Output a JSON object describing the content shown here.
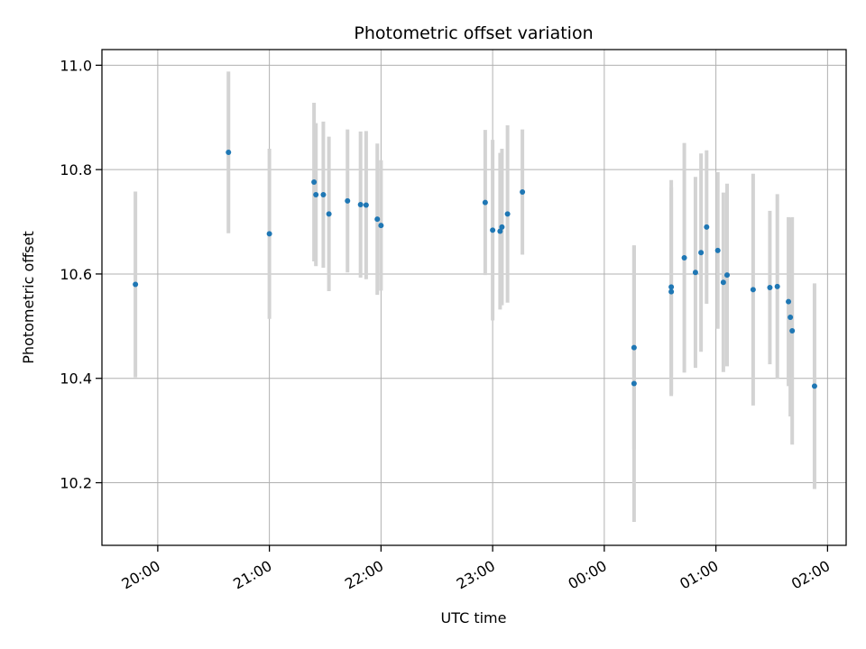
{
  "chart_data": {
    "type": "scatter",
    "title": "Photometric offset variation",
    "xlabel": "UTC time",
    "ylabel": "Photometric offset",
    "grid": true,
    "x_ticks": [
      "20:00",
      "21:00",
      "22:00",
      "23:00",
      "00:00",
      "01:00",
      "02:00"
    ],
    "y_ticks": [
      "10.2",
      "10.4",
      "10.6",
      "10.8",
      "11.0"
    ],
    "xlim": [
      "19:30",
      "02:10"
    ],
    "ylim": [
      10.08,
      11.03
    ],
    "colors": {
      "points": "#1f77b4",
      "errorbars": "#d3d3d3",
      "grid": "#b0b0b0"
    },
    "series": [
      {
        "points": [
          {
            "t": "19:48",
            "y": 10.58,
            "err": 0.178
          },
          {
            "t": "20:38",
            "y": 10.833,
            "err": 0.155
          },
          {
            "t": "21:00",
            "y": 10.677,
            "err": 0.163
          },
          {
            "t": "21:24",
            "y": 10.776,
            "err": 0.152
          },
          {
            "t": "21:25",
            "y": 10.752,
            "err": 0.137
          },
          {
            "t": "21:29",
            "y": 10.752,
            "err": 0.14
          },
          {
            "t": "21:32",
            "y": 10.715,
            "err": 0.148
          },
          {
            "t": "21:42",
            "y": 10.74,
            "err": 0.137
          },
          {
            "t": "21:49",
            "y": 10.733,
            "err": 0.14
          },
          {
            "t": "21:52",
            "y": 10.732,
            "err": 0.142
          },
          {
            "t": "21:58",
            "y": 10.705,
            "err": 0.145
          },
          {
            "t": "22:00",
            "y": 10.693,
            "err": 0.125
          },
          {
            "t": "22:56",
            "y": 10.737,
            "err": 0.139
          },
          {
            "t": "23:00",
            "y": 10.684,
            "err": 0.173
          },
          {
            "t": "23:04",
            "y": 10.682,
            "err": 0.15
          },
          {
            "t": "23:05",
            "y": 10.69,
            "err": 0.15
          },
          {
            "t": "23:08",
            "y": 10.715,
            "err": 0.17
          },
          {
            "t": "23:16",
            "y": 10.757,
            "err": 0.12
          },
          {
            "t": "00:16",
            "y": 10.459,
            "err": 0.195
          },
          {
            "t": "00:16",
            "y": 10.39,
            "err": 0.265
          },
          {
            "t": "00:36",
            "y": 10.566,
            "err": 0.2
          },
          {
            "t": "00:36",
            "y": 10.575,
            "err": 0.205
          },
          {
            "t": "00:43",
            "y": 10.631,
            "err": 0.22
          },
          {
            "t": "00:49",
            "y": 10.603,
            "err": 0.183
          },
          {
            "t": "00:52",
            "y": 10.641,
            "err": 0.19
          },
          {
            "t": "00:55",
            "y": 10.69,
            "err": 0.147
          },
          {
            "t": "01:01",
            "y": 10.645,
            "err": 0.15
          },
          {
            "t": "01:04",
            "y": 10.584,
            "err": 0.172
          },
          {
            "t": "01:06",
            "y": 10.598,
            "err": 0.175
          },
          {
            "t": "01:20",
            "y": 10.57,
            "err": 0.222
          },
          {
            "t": "01:29",
            "y": 10.574,
            "err": 0.147
          },
          {
            "t": "01:33",
            "y": 10.576,
            "err": 0.177
          },
          {
            "t": "01:39",
            "y": 10.547,
            "err": 0.162
          },
          {
            "t": "01:40",
            "y": 10.517,
            "err": 0.19
          },
          {
            "t": "01:41",
            "y": 10.491,
            "err": 0.218
          },
          {
            "t": "01:53",
            "y": 10.385,
            "err": 0.197
          }
        ]
      }
    ]
  }
}
